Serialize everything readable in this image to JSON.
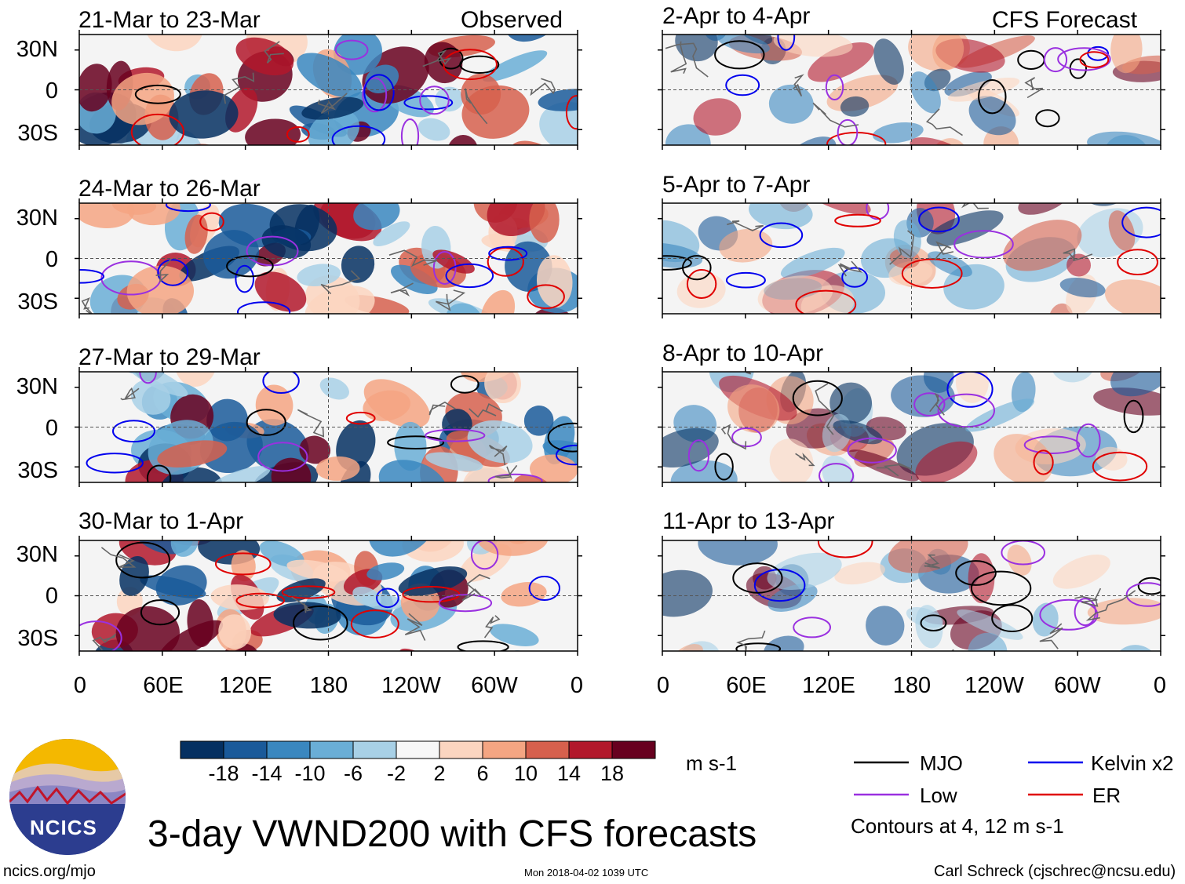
{
  "figure": {
    "title": "3-day VWND200 with CFS forecasts",
    "units": "m s-1",
    "website": "ncics.org/mjo",
    "timestamp": "Mon 2018-04-02 1039 UTC",
    "author": "Carl Schreck (cjschrec@ncsu.edu)",
    "logo_text": "NCICS",
    "contour_note": "Contours at 4, 12 m s-1",
    "column_labels": {
      "left": "Observed",
      "right": "CFS Forecast"
    }
  },
  "chart_data": {
    "type": "heatmap",
    "variable": "VWND200",
    "y_ticks": [
      "30N",
      "0",
      "30S"
    ],
    "x_ticks": [
      "0",
      "60E",
      "120E",
      "180",
      "120W",
      "60W",
      "0"
    ],
    "panels": [
      {
        "title": "21-Mar to 23-Mar",
        "column": "left",
        "row": 0
      },
      {
        "title": "24-Mar to 26-Mar",
        "column": "left",
        "row": 1
      },
      {
        "title": "27-Mar to 29-Mar",
        "column": "left",
        "row": 2
      },
      {
        "title": "30-Mar to 1-Apr",
        "column": "left",
        "row": 3
      },
      {
        "title": "2-Apr to 4-Apr",
        "column": "right",
        "row": 0
      },
      {
        "title": "5-Apr to 7-Apr",
        "column": "right",
        "row": 1
      },
      {
        "title": "8-Apr to 10-Apr",
        "column": "right",
        "row": 2
      },
      {
        "title": "11-Apr to 13-Apr",
        "column": "right",
        "row": 3
      }
    ],
    "colorbar": {
      "labels": [
        "-18",
        "-14",
        "-10",
        "-6",
        "-2",
        "2",
        "6",
        "10",
        "14",
        "18"
      ],
      "colors": [
        "#053061",
        "#1a5a9a",
        "#3a87bf",
        "#6aaed6",
        "#a8d0e6",
        "#ddebf3",
        "#f7f7f7",
        "#fbd5c0",
        "#f4a582",
        "#d6604d",
        "#b2182b",
        "#67001f"
      ]
    },
    "contour_legend": [
      {
        "label": "MJO",
        "color": "#000000"
      },
      {
        "label": "Kelvin x2",
        "color": "#0000ee"
      },
      {
        "label": "Low",
        "color": "#9a30e0"
      },
      {
        "label": "ER",
        "color": "#e00000"
      }
    ]
  }
}
